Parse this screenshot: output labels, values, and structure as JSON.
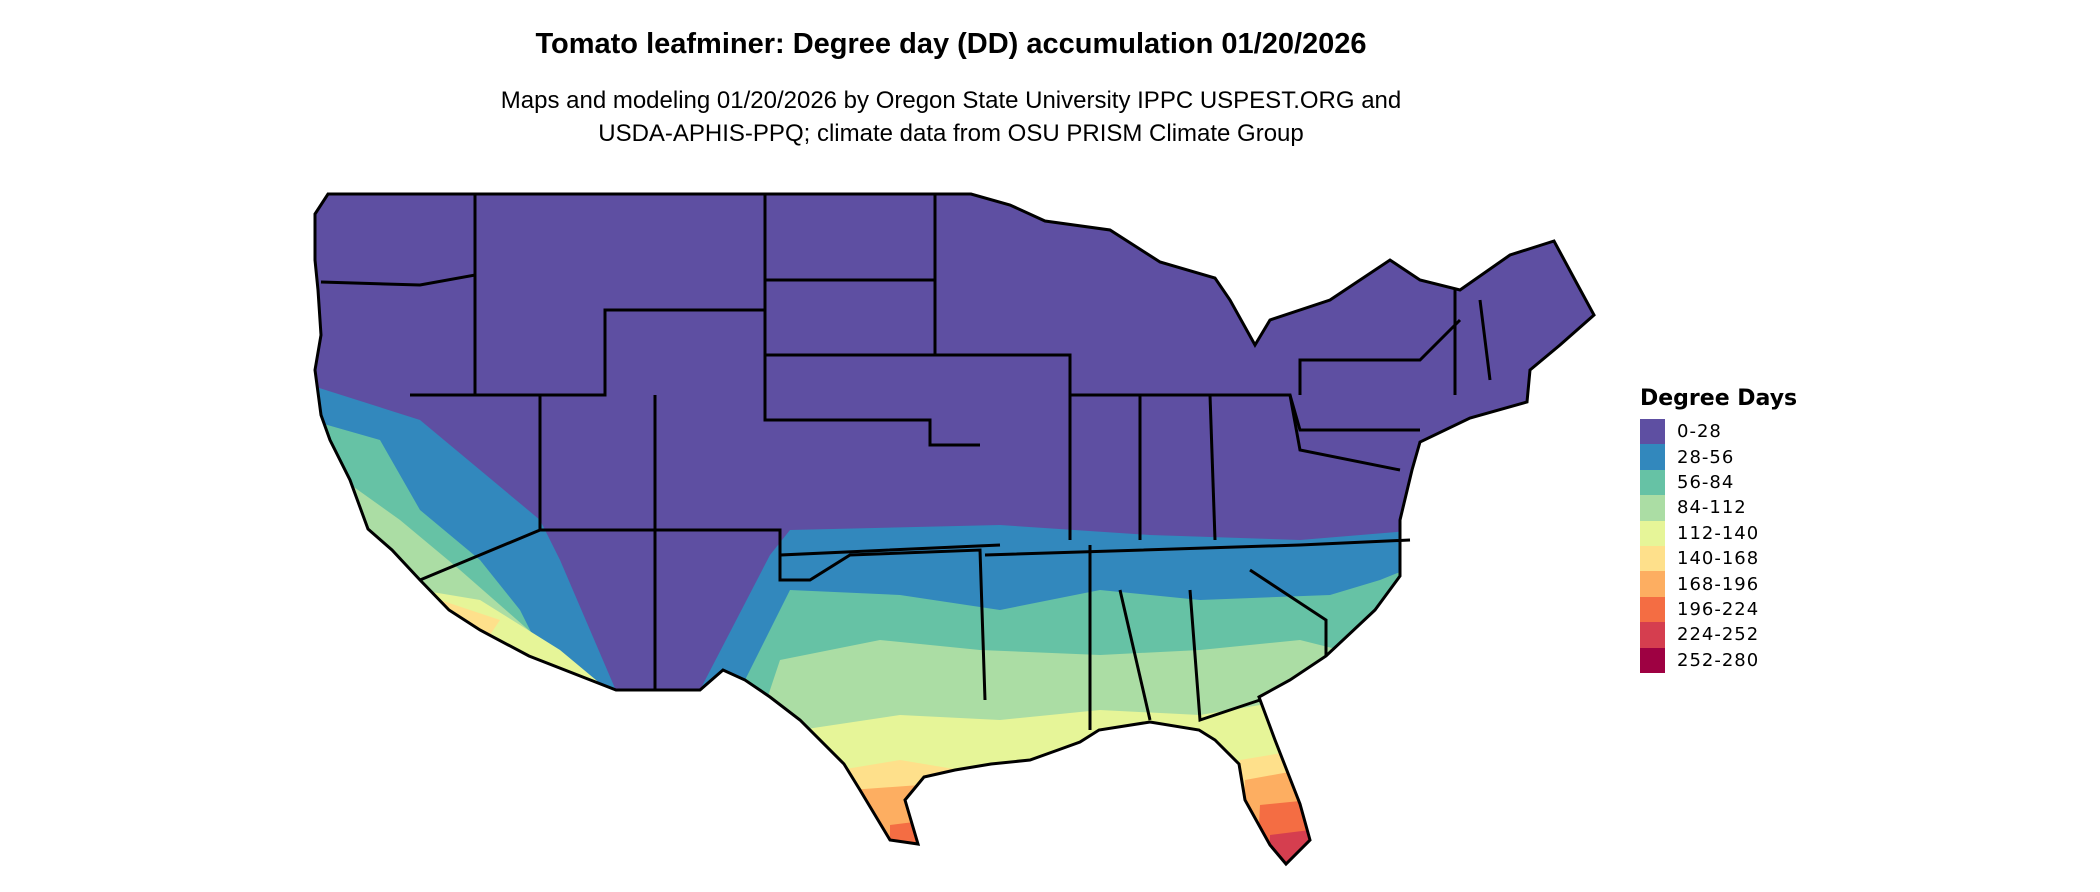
{
  "header": {
    "title": "Tomato leafminer: Degree day (DD) accumulation 01/20/2026",
    "subtitle_line1": "Maps and modeling 01/20/2026 by Oregon State University IPPC USPEST.ORG and",
    "subtitle_line2": "USDA-APHIS-PPQ; climate data from OSU PRISM Climate Group"
  },
  "legend": {
    "title": "Degree Days",
    "items": [
      {
        "label": "0-28",
        "color": "#5E4FA2"
      },
      {
        "label": "28-56",
        "color": "#3288BD"
      },
      {
        "label": "56-84",
        "color": "#66C2A5"
      },
      {
        "label": "84-112",
        "color": "#ABDDA4"
      },
      {
        "label": "112-140",
        "color": "#E6F598"
      },
      {
        "label": "140-168",
        "color": "#FEE08B"
      },
      {
        "label": "168-196",
        "color": "#FDAE61"
      },
      {
        "label": "196-224",
        "color": "#F46D43"
      },
      {
        "label": "224-252",
        "color": "#D53E4F"
      },
      {
        "label": "252-280",
        "color": "#9E0142"
      }
    ]
  },
  "map": {
    "region": "Contiguous United States",
    "border_color": "#000000"
  }
}
